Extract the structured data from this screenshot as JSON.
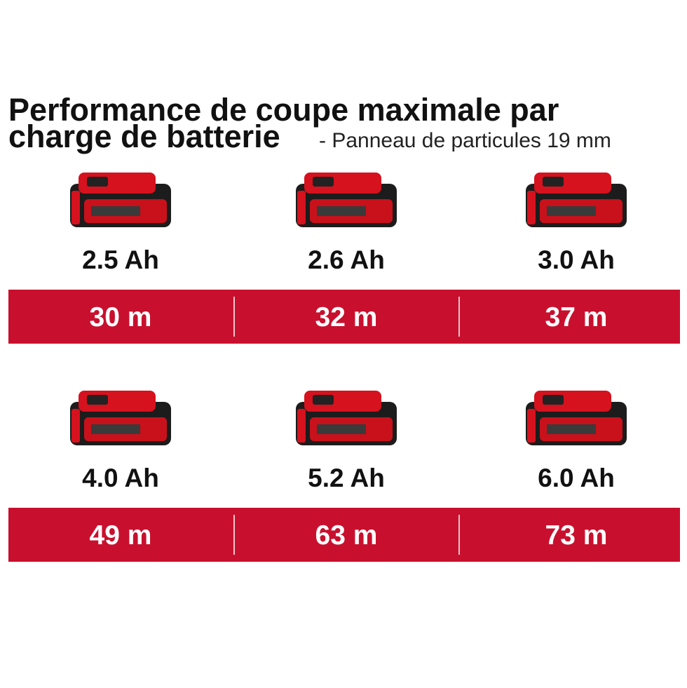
{
  "header": {
    "title_line1": "Performance de coupe maximale par",
    "title_line2": "charge de batterie",
    "subtitle": "- Panneau de particules 19 mm"
  },
  "rows": [
    {
      "items": [
        {
          "capacity": "2.5 Ah",
          "runtime": "30 m"
        },
        {
          "capacity": "2.6 Ah",
          "runtime": "32 m"
        },
        {
          "capacity": "3.0 Ah",
          "runtime": "37 m"
        }
      ]
    },
    {
      "items": [
        {
          "capacity": "4.0 Ah",
          "runtime": "49 m"
        },
        {
          "capacity": "5.2 Ah",
          "runtime": "63 m"
        },
        {
          "capacity": "6.0 Ah",
          "runtime": "73 m"
        }
      ]
    }
  ]
}
